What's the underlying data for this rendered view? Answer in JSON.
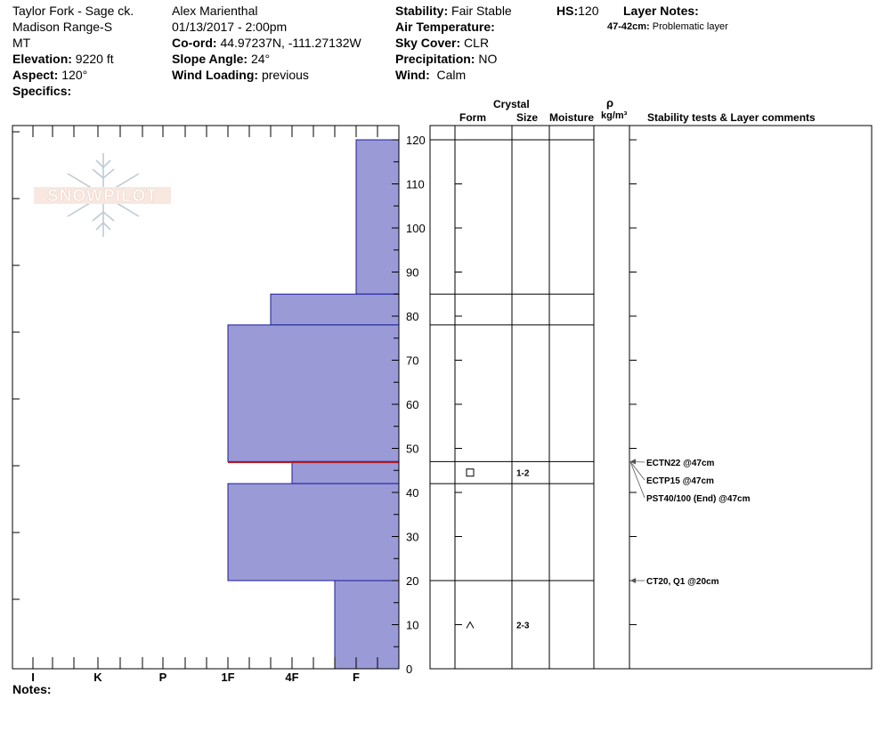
{
  "header": {
    "location_line1": "Taylor Fork - Sage ck.",
    "location_line2": "Madison Range-S",
    "location_line3": "MT",
    "elevation_label": "Elevation:",
    "elevation_value": "9220 ft",
    "aspect_label": "Aspect:",
    "aspect_value": "120°",
    "specifics_label": "Specifics:",
    "observer": "Alex Marienthal",
    "datetime": "01/13/2017 - 2:00pm",
    "coord_label": "Co-ord:",
    "coord_value": "44.97237N, -111.27132W",
    "slope_label": "Slope Angle:",
    "slope_value": "24°",
    "wind_loading_label": "Wind Loading:",
    "wind_loading_value": "previous",
    "stability_label": "Stability:",
    "stability_value": "Fair Stable",
    "air_temp_label": "Air Temperature:",
    "air_temp_value": "",
    "sky_label": "Sky Cover:",
    "sky_value": "CLR",
    "precip_label": "Precipitation:",
    "precip_value": "NO",
    "wind_label": "Wind:",
    "wind_value": "Calm",
    "hs_label": "HS:",
    "hs_value": "120",
    "layer_notes_label": "Layer Notes:",
    "layer_note_range": "47-42cm:",
    "layer_note_text": "Problematic layer"
  },
  "watermark": {
    "text": "SNOWPILOT"
  },
  "columns": {
    "crystal": "Crystal",
    "form": "Form",
    "size": "Size",
    "moisture": "Moisture",
    "rho": "ρ",
    "density_unit": "kg/m³",
    "comments": "Stability tests & Layer comments"
  },
  "notes_label": "Notes:",
  "colors": {
    "layer_fill": "#9a9ad6",
    "layer_edge": "#1a1aa0",
    "weak_layer": "#c02020"
  },
  "chart_data": {
    "type": "bar",
    "title": "",
    "hardness_scale": [
      "I",
      "K",
      "P",
      "1F",
      "4F",
      "F"
    ],
    "ylim": [
      0,
      120
    ],
    "yticks": [
      0,
      10,
      20,
      30,
      40,
      50,
      60,
      70,
      80,
      90,
      100,
      110,
      120
    ],
    "layers": [
      {
        "top": 120,
        "bottom": 85,
        "hardness": "F"
      },
      {
        "top": 85,
        "bottom": 78,
        "hardness": "4F+"
      },
      {
        "top": 78,
        "bottom": 47,
        "hardness": "1F"
      },
      {
        "top": 47,
        "bottom": 42,
        "hardness": "4F"
      },
      {
        "top": 42,
        "bottom": 20,
        "hardness": "1F"
      },
      {
        "top": 20,
        "bottom": 0,
        "hardness": "F+"
      }
    ],
    "weak_layer_height": 47,
    "layer_boundaries": [
      120,
      85,
      78,
      47,
      42,
      20
    ],
    "crystals": [
      {
        "height": 44.5,
        "form": "□",
        "size": "1-2"
      },
      {
        "height": 10,
        "form": "^",
        "size": "2-3"
      }
    ],
    "stability_tests": [
      {
        "height": 47,
        "label": "ECTN22 @47cm"
      },
      {
        "height": 47,
        "label": "ECTP15 @47cm"
      },
      {
        "height": 47,
        "label": "PST40/100 (End) @47cm"
      },
      {
        "height": 20,
        "label": "CT20, Q1 @20cm"
      }
    ]
  }
}
